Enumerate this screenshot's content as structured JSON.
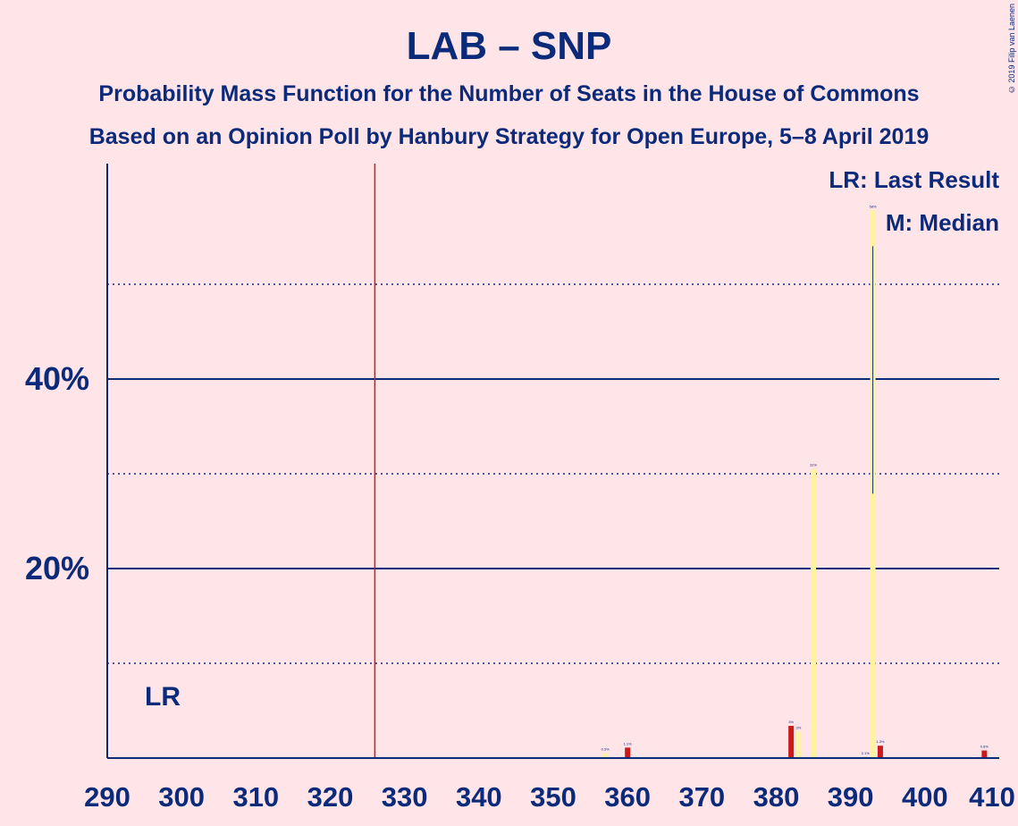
{
  "chart_data": {
    "type": "bar",
    "title": "LAB – SNP",
    "subtitle_1": "Probability Mass Function for the Number of Seats in the House of Commons",
    "subtitle_2": "Based on an Opinion Poll by Hanbury Strategy for Open Europe, 5–8 April 2019",
    "legend": {
      "lr": "LR: Last Result",
      "m": "M: Median",
      "placement": "top-right"
    },
    "lr_label": "LR",
    "last_result_seats": 326,
    "median_seats": 393,
    "xlim": [
      290,
      410
    ],
    "ylim": [
      0,
      62
    ],
    "x_ticks": [
      "290",
      "300",
      "310",
      "320",
      "330",
      "340",
      "350",
      "360",
      "370",
      "380",
      "390",
      "400",
      "410"
    ],
    "y_tick_labels": [
      "20%",
      "40%"
    ],
    "y_solid_grid": [
      20,
      40
    ],
    "y_dotted_grid": [
      10,
      30,
      50
    ],
    "colors": {
      "bar_red": "#cc1a1a",
      "bar_yellow": "#fff2a0",
      "axis": "#0b2a7a",
      "background": "#ffe4e8"
    },
    "bars": [
      {
        "x": 357,
        "value": 0.5,
        "label": "0.5%",
        "color": "yellow"
      },
      {
        "x": 360,
        "value": 1.1,
        "label": "1.1%",
        "color": "red"
      },
      {
        "x": 382,
        "value": 3.4,
        "label": "3%",
        "color": "red"
      },
      {
        "x": 383,
        "value": 2.8,
        "label": "3%",
        "color": "yellow"
      },
      {
        "x": 385,
        "value": 30.5,
        "label": "31%",
        "color": "yellow"
      },
      {
        "x": 392,
        "value": 0.1,
        "label": "0.1%",
        "color": "red"
      },
      {
        "x": 393,
        "value": 57.8,
        "label": "58%",
        "color": "yellow"
      },
      {
        "x": 394,
        "value": 1.3,
        "label": "1.3%",
        "color": "red"
      },
      {
        "x": 408,
        "value": 0.8,
        "label": "0.8%",
        "color": "red"
      }
    ]
  },
  "copyright": "© 2019 Filip van Laenen"
}
